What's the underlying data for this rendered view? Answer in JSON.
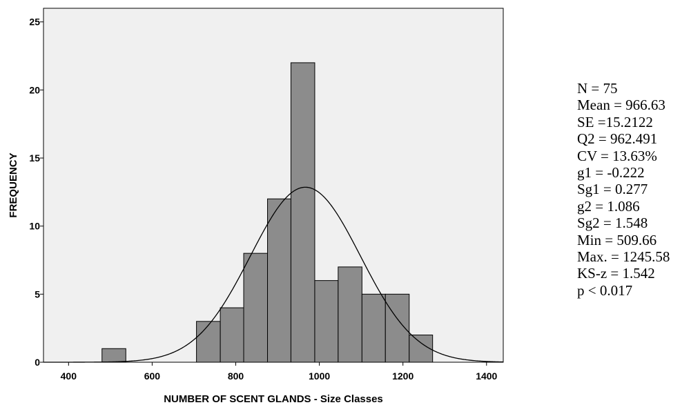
{
  "chart_data": {
    "type": "bar",
    "title": "",
    "xlabel": "NUMBER OF SCENT GLANDS - Size Classes",
    "ylabel": "FREQUENCY",
    "xlim": [
      340,
      1440
    ],
    "ylim": [
      0,
      26
    ],
    "x_ticks": [
      "400",
      "600",
      "800",
      "1000",
      "1200",
      "1400"
    ],
    "y_ticks": [
      "0",
      "5",
      "10",
      "15",
      "20",
      "25"
    ],
    "bins": [
      {
        "start": 480,
        "end": 537,
        "count": 1
      },
      {
        "start": 706,
        "end": 763,
        "count": 3
      },
      {
        "start": 763,
        "end": 819,
        "count": 4
      },
      {
        "start": 819,
        "end": 876,
        "count": 8
      },
      {
        "start": 876,
        "end": 932,
        "count": 12
      },
      {
        "start": 932,
        "end": 989,
        "count": 22
      },
      {
        "start": 989,
        "end": 1045,
        "count": 6
      },
      {
        "start": 1045,
        "end": 1102,
        "count": 7
      },
      {
        "start": 1102,
        "end": 1158,
        "count": 5
      },
      {
        "start": 1158,
        "end": 1215,
        "count": 5
      },
      {
        "start": 1215,
        "end": 1271,
        "count": 2
      }
    ],
    "normal_curve": {
      "mean": 966.63,
      "sd": 131.74,
      "n": 75,
      "bin_width": 56.6
    },
    "bar_color": "#8c8c8c",
    "plot_bg": "#f0f0f0",
    "grid": false
  },
  "stats": [
    "N = 75",
    "Mean = 966.63",
    "SE =15.2122",
    "Q2 = 962.491",
    "CV = 13.63%",
    "g1 = -0.222",
    "Sg1 = 0.277",
    "g2 = 1.086",
    "Sg2 = 1.548",
    "Min = 509.66",
    "Max. = 1245.58",
    "KS-z = 1.542",
    "p < 0.017"
  ]
}
